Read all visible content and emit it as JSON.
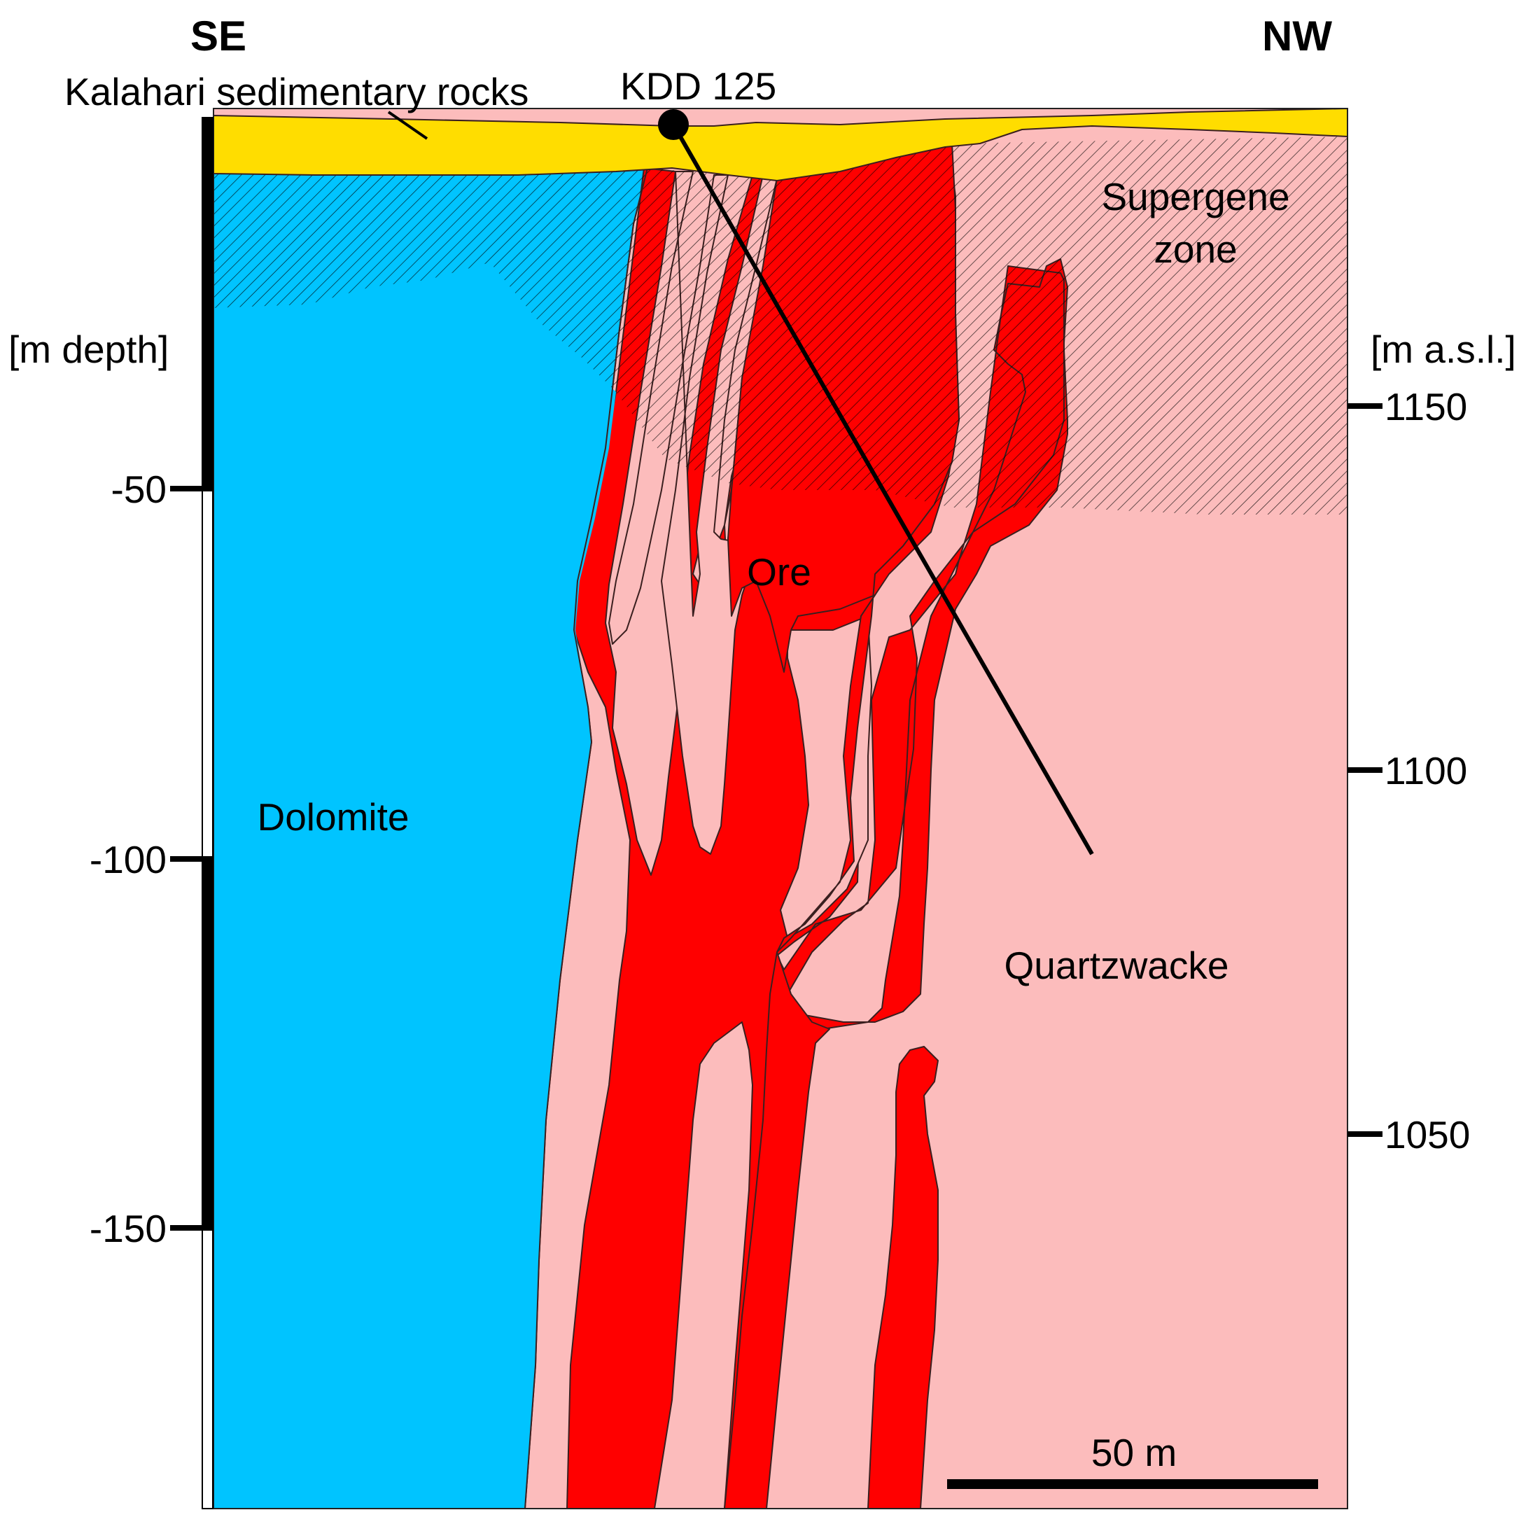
{
  "orientation": {
    "left": "SE",
    "right": "NW"
  },
  "units": {
    "left_axis": "[m depth]",
    "right_axis": "[m a.s.l.]"
  },
  "depth_ticks": [
    "-50",
    "-100",
    "-150"
  ],
  "elevation_ticks": [
    "1150",
    "1100",
    "1050"
  ],
  "units_labels": {
    "kalahari": "Kalahari sedimentary rocks",
    "supergene_line1": "Supergene",
    "supergene_line2": "zone",
    "dolomite": "Dolomite",
    "ore": "Ore",
    "quartzwacke": "Quartzwacke"
  },
  "drillhole": "KDD 125",
  "scale_bar": "50 m",
  "colors": {
    "kalahari": "#ffdd00",
    "dolomite": "#00c4ff",
    "quartzwacke": "#fcbcbc",
    "ore": "#ff0000",
    "supergene_hatch": "#000000"
  }
}
